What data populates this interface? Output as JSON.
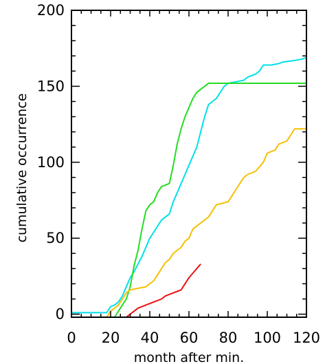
{
  "chart_data": {
    "type": "line",
    "title": "",
    "xlabel": "month after min.",
    "ylabel": "cumulative occurrence",
    "xlim": [
      0,
      120
    ],
    "ylim": [
      -2,
      200
    ],
    "xticks": [
      0,
      20,
      40,
      60,
      80,
      100,
      120
    ],
    "xtick_labels": [
      "0",
      "20",
      "40",
      "60",
      "80",
      "100",
      "120"
    ],
    "yticks": [
      0,
      50,
      100,
      150,
      200
    ],
    "ytick_labels": [
      "0",
      "50",
      "100",
      "150",
      "200"
    ],
    "grid": false,
    "legend": "none",
    "series": [
      {
        "color": "#00e0e8",
        "points": [
          [
            0,
            1
          ],
          [
            18,
            1
          ],
          [
            20,
            5
          ],
          [
            22,
            6
          ],
          [
            24,
            8
          ],
          [
            26,
            12
          ],
          [
            28,
            18
          ],
          [
            30,
            24
          ],
          [
            32,
            28
          ],
          [
            34,
            33
          ],
          [
            36,
            38
          ],
          [
            38,
            44
          ],
          [
            40,
            50
          ],
          [
            42,
            54
          ],
          [
            44,
            58
          ],
          [
            46,
            62
          ],
          [
            48,
            64
          ],
          [
            50,
            66
          ],
          [
            52,
            74
          ],
          [
            54,
            80
          ],
          [
            56,
            86
          ],
          [
            58,
            92
          ],
          [
            60,
            98
          ],
          [
            62,
            104
          ],
          [
            64,
            110
          ],
          [
            66,
            120
          ],
          [
            68,
            130
          ],
          [
            70,
            138
          ],
          [
            72,
            140
          ],
          [
            74,
            142
          ],
          [
            76,
            146
          ],
          [
            78,
            150
          ],
          [
            80,
            152
          ],
          [
            84,
            153
          ],
          [
            88,
            154
          ],
          [
            90,
            156
          ],
          [
            94,
            158
          ],
          [
            96,
            160
          ],
          [
            98,
            164
          ],
          [
            102,
            164
          ],
          [
            106,
            165
          ],
          [
            108,
            166
          ],
          [
            114,
            167
          ],
          [
            118,
            168
          ],
          [
            120,
            169
          ]
        ]
      },
      {
        "color": "#22dd22",
        "points": [
          [
            0,
            -2
          ],
          [
            22,
            -2
          ],
          [
            24,
            2
          ],
          [
            26,
            6
          ],
          [
            28,
            10
          ],
          [
            30,
            18
          ],
          [
            32,
            32
          ],
          [
            34,
            42
          ],
          [
            36,
            56
          ],
          [
            38,
            68
          ],
          [
            40,
            72
          ],
          [
            42,
            74
          ],
          [
            44,
            80
          ],
          [
            46,
            84
          ],
          [
            48,
            85
          ],
          [
            50,
            86
          ],
          [
            52,
            98
          ],
          [
            54,
            112
          ],
          [
            56,
            122
          ],
          [
            58,
            130
          ],
          [
            60,
            136
          ],
          [
            62,
            142
          ],
          [
            64,
            146
          ],
          [
            66,
            148
          ],
          [
            68,
            150
          ],
          [
            70,
            152
          ],
          [
            72,
            152
          ],
          [
            120,
            152
          ]
        ]
      },
      {
        "color": "#f5c000",
        "points": [
          [
            0,
            -2
          ],
          [
            18,
            -2
          ],
          [
            20,
            2
          ],
          [
            22,
            4
          ],
          [
            24,
            6
          ],
          [
            26,
            10
          ],
          [
            28,
            14
          ],
          [
            30,
            16
          ],
          [
            34,
            17
          ],
          [
            38,
            18
          ],
          [
            42,
            22
          ],
          [
            44,
            26
          ],
          [
            46,
            30
          ],
          [
            48,
            34
          ],
          [
            50,
            36
          ],
          [
            52,
            40
          ],
          [
            56,
            44
          ],
          [
            58,
            48
          ],
          [
            60,
            50
          ],
          [
            62,
            56
          ],
          [
            66,
            60
          ],
          [
            70,
            64
          ],
          [
            72,
            68
          ],
          [
            74,
            72
          ],
          [
            80,
            74
          ],
          [
            82,
            78
          ],
          [
            84,
            82
          ],
          [
            86,
            86
          ],
          [
            88,
            90
          ],
          [
            90,
            92
          ],
          [
            94,
            94
          ],
          [
            98,
            100
          ],
          [
            100,
            106
          ],
          [
            104,
            108
          ],
          [
            106,
            112
          ],
          [
            110,
            114
          ],
          [
            112,
            118
          ],
          [
            114,
            122
          ],
          [
            120,
            122
          ]
        ]
      },
      {
        "color": "#ee1111",
        "points": [
          [
            0,
            -2
          ],
          [
            28,
            -2
          ],
          [
            30,
            0
          ],
          [
            32,
            2
          ],
          [
            34,
            4
          ],
          [
            38,
            6
          ],
          [
            42,
            8
          ],
          [
            46,
            10
          ],
          [
            48,
            12
          ],
          [
            52,
            14
          ],
          [
            56,
            16
          ],
          [
            58,
            20
          ],
          [
            60,
            24
          ],
          [
            62,
            27
          ],
          [
            64,
            30
          ],
          [
            66,
            33
          ]
        ]
      }
    ]
  }
}
